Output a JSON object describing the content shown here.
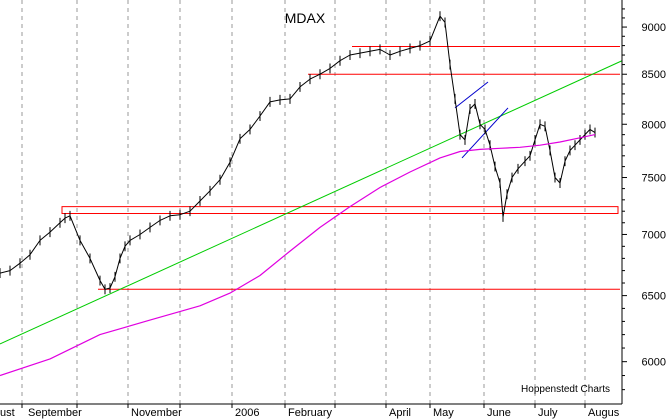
{
  "chart_data": {
    "type": "line",
    "title": "MDAX",
    "credit": "Hoppenstedt Charts",
    "x_labels": [
      "ust",
      "September",
      "November",
      "2006",
      "February",
      "April",
      "May",
      "June",
      "July",
      "Augus"
    ],
    "y_ticks": [
      6000,
      6500,
      7000,
      7500,
      8000,
      8500,
      9000
    ],
    "ylim": [
      5700,
      9300
    ],
    "y_scale": "log",
    "grid": {
      "vertical": true,
      "style": "dashed"
    },
    "colors": {
      "price": "#000000",
      "moving_average": "#e000e0",
      "trend_line": "#00cc00",
      "levels": "#ff0000",
      "channel": "#0000cc"
    },
    "series": [
      {
        "role": "price",
        "x": [
          0,
          10,
          20,
          30,
          40,
          50,
          60,
          65,
          70,
          80,
          90,
          100,
          105,
          110,
          115,
          120,
          125,
          130,
          140,
          150,
          160,
          170,
          180,
          190,
          200,
          210,
          220,
          230,
          240,
          250,
          260,
          270,
          280,
          290,
          300,
          310,
          320,
          330,
          340,
          350,
          360,
          370,
          380,
          390,
          400,
          410,
          420,
          430,
          440,
          445,
          450,
          455,
          460,
          465,
          470,
          475,
          480,
          485,
          490,
          495,
          500,
          503,
          507,
          512,
          518,
          525,
          530,
          535,
          540,
          545,
          550,
          555,
          560,
          565,
          570,
          575,
          580,
          585,
          590,
          595
        ],
        "values": [
          6680,
          6700,
          6760,
          6830,
          6950,
          7020,
          7100,
          7140,
          7160,
          6950,
          6800,
          6620,
          6550,
          6560,
          6650,
          6800,
          6900,
          6950,
          7000,
          7060,
          7120,
          7160,
          7170,
          7200,
          7290,
          7380,
          7480,
          7640,
          7860,
          7950,
          8080,
          8220,
          8240,
          8250,
          8370,
          8450,
          8500,
          8560,
          8640,
          8700,
          8720,
          8740,
          8760,
          8700,
          8740,
          8770,
          8800,
          8850,
          9120,
          9050,
          8600,
          8250,
          7900,
          7850,
          8150,
          8200,
          8000,
          7950,
          7800,
          7600,
          7450,
          7150,
          7350,
          7500,
          7580,
          7650,
          7700,
          7850,
          8000,
          7980,
          7750,
          7500,
          7450,
          7650,
          7750,
          7800,
          7850,
          7900,
          7950,
          7920
        ]
      },
      {
        "role": "moving_average",
        "x": [
          0,
          50,
          100,
          150,
          200,
          230,
          260,
          290,
          320,
          350,
          380,
          410,
          440,
          460,
          480,
          500,
          520,
          540,
          560,
          580,
          595
        ],
        "values": [
          5900,
          6020,
          6200,
          6310,
          6420,
          6520,
          6660,
          6860,
          7060,
          7240,
          7410,
          7550,
          7680,
          7740,
          7760,
          7770,
          7780,
          7800,
          7830,
          7870,
          7900
        ]
      }
    ],
    "trend_line": {
      "x": [
        0,
        622
      ],
      "values": [
        6130,
        8640
      ]
    },
    "channel_lines": [
      {
        "x": [
          455,
          488
        ],
        "values": [
          8160,
          8420
        ]
      },
      {
        "x": [
          462,
          508
        ],
        "values": [
          7680,
          8160
        ]
      }
    ],
    "levels": [
      {
        "kind": "line",
        "value": 8790,
        "x_start": 352
      },
      {
        "kind": "line",
        "value": 8500,
        "x_start": 308
      },
      {
        "kind": "band",
        "value_low": 7180,
        "value_high": 7240,
        "x_start": 62
      },
      {
        "kind": "line",
        "value": 6550,
        "x_start": 98
      }
    ]
  }
}
